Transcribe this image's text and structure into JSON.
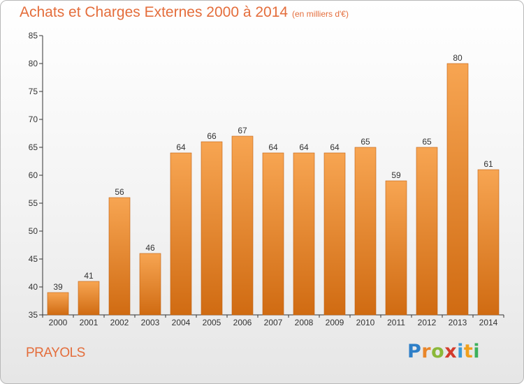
{
  "header": {
    "title": "Achats et Charges Externes 2000 à 2014",
    "unit": "(en milliers d'€)"
  },
  "footer": {
    "commune": "PRAYOLS",
    "brand": "Proxiti"
  },
  "colors": {
    "title": "#e46d3b",
    "bar_top": "#f7a552",
    "bar_bottom": "#d06b12",
    "bar_edge": "#c05f10"
  },
  "chart_data": {
    "type": "bar",
    "title": "Achats et Charges Externes 2000 à 2014",
    "xlabel": "",
    "ylabel": "",
    "categories": [
      "2000",
      "2001",
      "2002",
      "2003",
      "2004",
      "2005",
      "2006",
      "2007",
      "2008",
      "2009",
      "2010",
      "2011",
      "2012",
      "2013",
      "2014"
    ],
    "values": [
      39,
      41,
      56,
      46,
      64,
      66,
      67,
      64,
      64,
      64,
      65,
      59,
      65,
      80,
      61
    ],
    "ylim": [
      35,
      85
    ],
    "yticks": [
      35,
      40,
      45,
      50,
      55,
      60,
      65,
      70,
      75,
      80,
      85
    ],
    "grid": false,
    "legend": "none"
  }
}
